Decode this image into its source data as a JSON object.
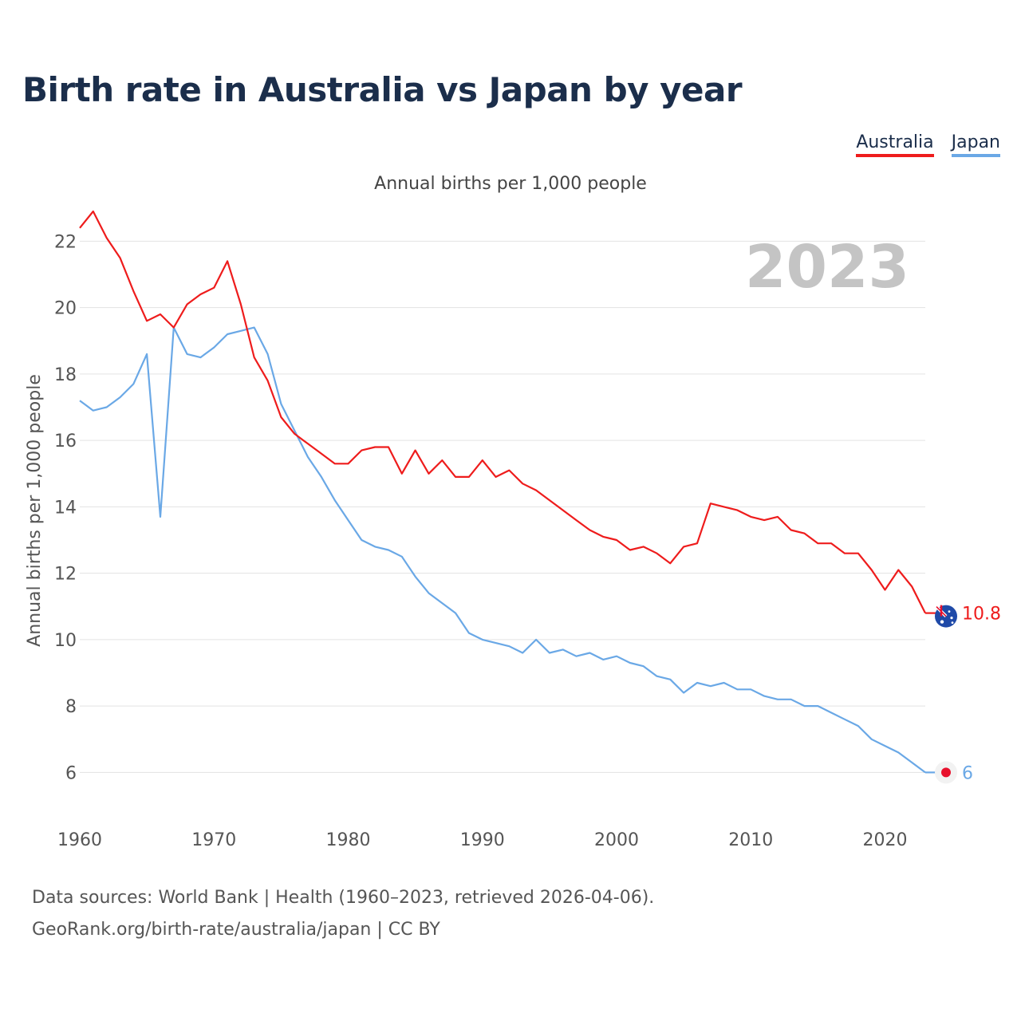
{
  "title": "Birth rate in Australia vs Japan by year",
  "legend": {
    "items": [
      {
        "label": "Australia",
        "color": "#ee1c1c"
      },
      {
        "label": "Japan",
        "color": "#6aa8e6"
      }
    ]
  },
  "subtitle": "Annual births per 1,000 people",
  "year_watermark": "2023",
  "footer": {
    "line1": "Data sources: World Bank | Health (1960–2023, retrieved 2026-04-06).",
    "line2": "GeoRank.org/birth-rate/australia/japan | CC BY"
  },
  "chart_data": {
    "type": "line",
    "title": "Birth rate in Australia vs Japan by year",
    "xlabel": "",
    "ylabel": "Annual births per 1,000 people",
    "xlim": [
      1960,
      2023
    ],
    "ylim": [
      5,
      23.5
    ],
    "xticks": [
      1960,
      1970,
      1980,
      1990,
      2000,
      2010,
      2020
    ],
    "yticks": [
      6,
      8,
      10,
      12,
      14,
      16,
      18,
      20,
      22
    ],
    "grid": true,
    "x": [
      1960,
      1961,
      1962,
      1963,
      1964,
      1965,
      1966,
      1967,
      1968,
      1969,
      1970,
      1971,
      1972,
      1973,
      1974,
      1975,
      1976,
      1977,
      1978,
      1979,
      1980,
      1981,
      1982,
      1983,
      1984,
      1985,
      1986,
      1987,
      1988,
      1989,
      1990,
      1991,
      1992,
      1993,
      1994,
      1995,
      1996,
      1997,
      1998,
      1999,
      2000,
      2001,
      2002,
      2003,
      2004,
      2005,
      2006,
      2007,
      2008,
      2009,
      2010,
      2011,
      2012,
      2013,
      2014,
      2015,
      2016,
      2017,
      2018,
      2019,
      2020,
      2021,
      2022,
      2023
    ],
    "series": [
      {
        "name": "Australia",
        "color": "#ee1c1c",
        "end_label": "10.8",
        "values": [
          22.4,
          22.9,
          22.1,
          21.5,
          20.5,
          19.6,
          19.8,
          19.4,
          20.1,
          20.4,
          20.6,
          21.4,
          20.1,
          18.5,
          17.8,
          16.7,
          16.2,
          15.9,
          15.6,
          15.3,
          15.3,
          15.7,
          15.8,
          15.8,
          15.0,
          15.7,
          15.0,
          15.4,
          14.9,
          14.9,
          15.4,
          14.9,
          15.1,
          14.7,
          14.5,
          14.2,
          13.9,
          13.6,
          13.3,
          13.1,
          13.0,
          12.7,
          12.8,
          12.6,
          12.3,
          12.8,
          12.9,
          14.1,
          14.0,
          13.9,
          13.7,
          13.6,
          13.7,
          13.3,
          13.2,
          12.9,
          12.9,
          12.6,
          12.6,
          12.1,
          11.5,
          12.1,
          11.6,
          10.8
        ]
      },
      {
        "name": "Japan",
        "color": "#6aa8e6",
        "end_label": "6",
        "values": [
          17.2,
          16.9,
          17.0,
          17.3,
          17.7,
          18.6,
          13.7,
          19.4,
          18.6,
          18.5,
          18.8,
          19.2,
          19.3,
          19.4,
          18.6,
          17.1,
          16.3,
          15.5,
          14.9,
          14.2,
          13.6,
          13.0,
          12.8,
          12.7,
          12.5,
          11.9,
          11.4,
          11.1,
          10.8,
          10.2,
          10.0,
          9.9,
          9.8,
          9.6,
          10.0,
          9.6,
          9.7,
          9.5,
          9.6,
          9.4,
          9.5,
          9.3,
          9.2,
          8.9,
          8.8,
          8.4,
          8.7,
          8.6,
          8.7,
          8.5,
          8.5,
          8.3,
          8.2,
          8.2,
          8.0,
          8.0,
          7.8,
          7.6,
          7.4,
          7.0,
          6.8,
          6.6,
          6.3,
          6.0
        ]
      }
    ]
  }
}
